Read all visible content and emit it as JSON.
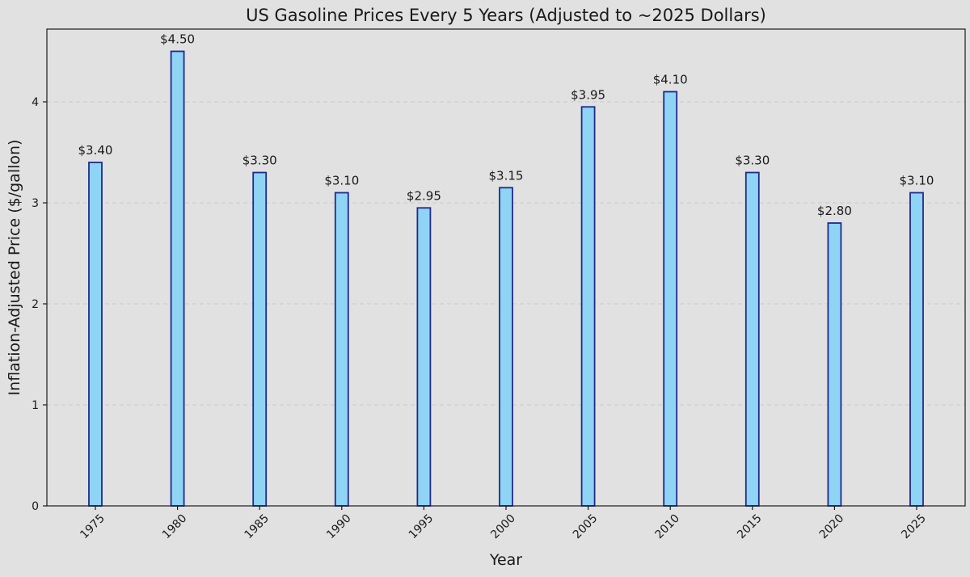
{
  "chart_data": {
    "type": "bar",
    "title": "US Gasoline Prices Every 5 Years (Adjusted to ~2025 Dollars)",
    "xlabel": "Year",
    "ylabel": "Inflation-Adjusted Price ($/gallon)",
    "categories": [
      "1975",
      "1980",
      "1985",
      "1990",
      "1995",
      "2000",
      "2005",
      "2010",
      "2015",
      "2020",
      "2025"
    ],
    "values": [
      3.4,
      4.5,
      3.3,
      3.1,
      2.95,
      3.15,
      3.95,
      4.1,
      3.3,
      2.8,
      3.1
    ],
    "data_labels": [
      "$3.40",
      "$4.50",
      "$3.30",
      "$3.10",
      "$2.95",
      "$3.15",
      "$3.95",
      "$4.10",
      "$3.30",
      "$2.80",
      "$3.10"
    ],
    "ylim": [
      0,
      4.72
    ],
    "yticks": [
      0,
      1,
      2,
      3,
      4
    ],
    "grid": "horizontal-dashed",
    "colors": {
      "bar_fill": "#8fd3f5",
      "bar_edge": "#1f2a8a",
      "background": "#e1e1e1"
    }
  }
}
